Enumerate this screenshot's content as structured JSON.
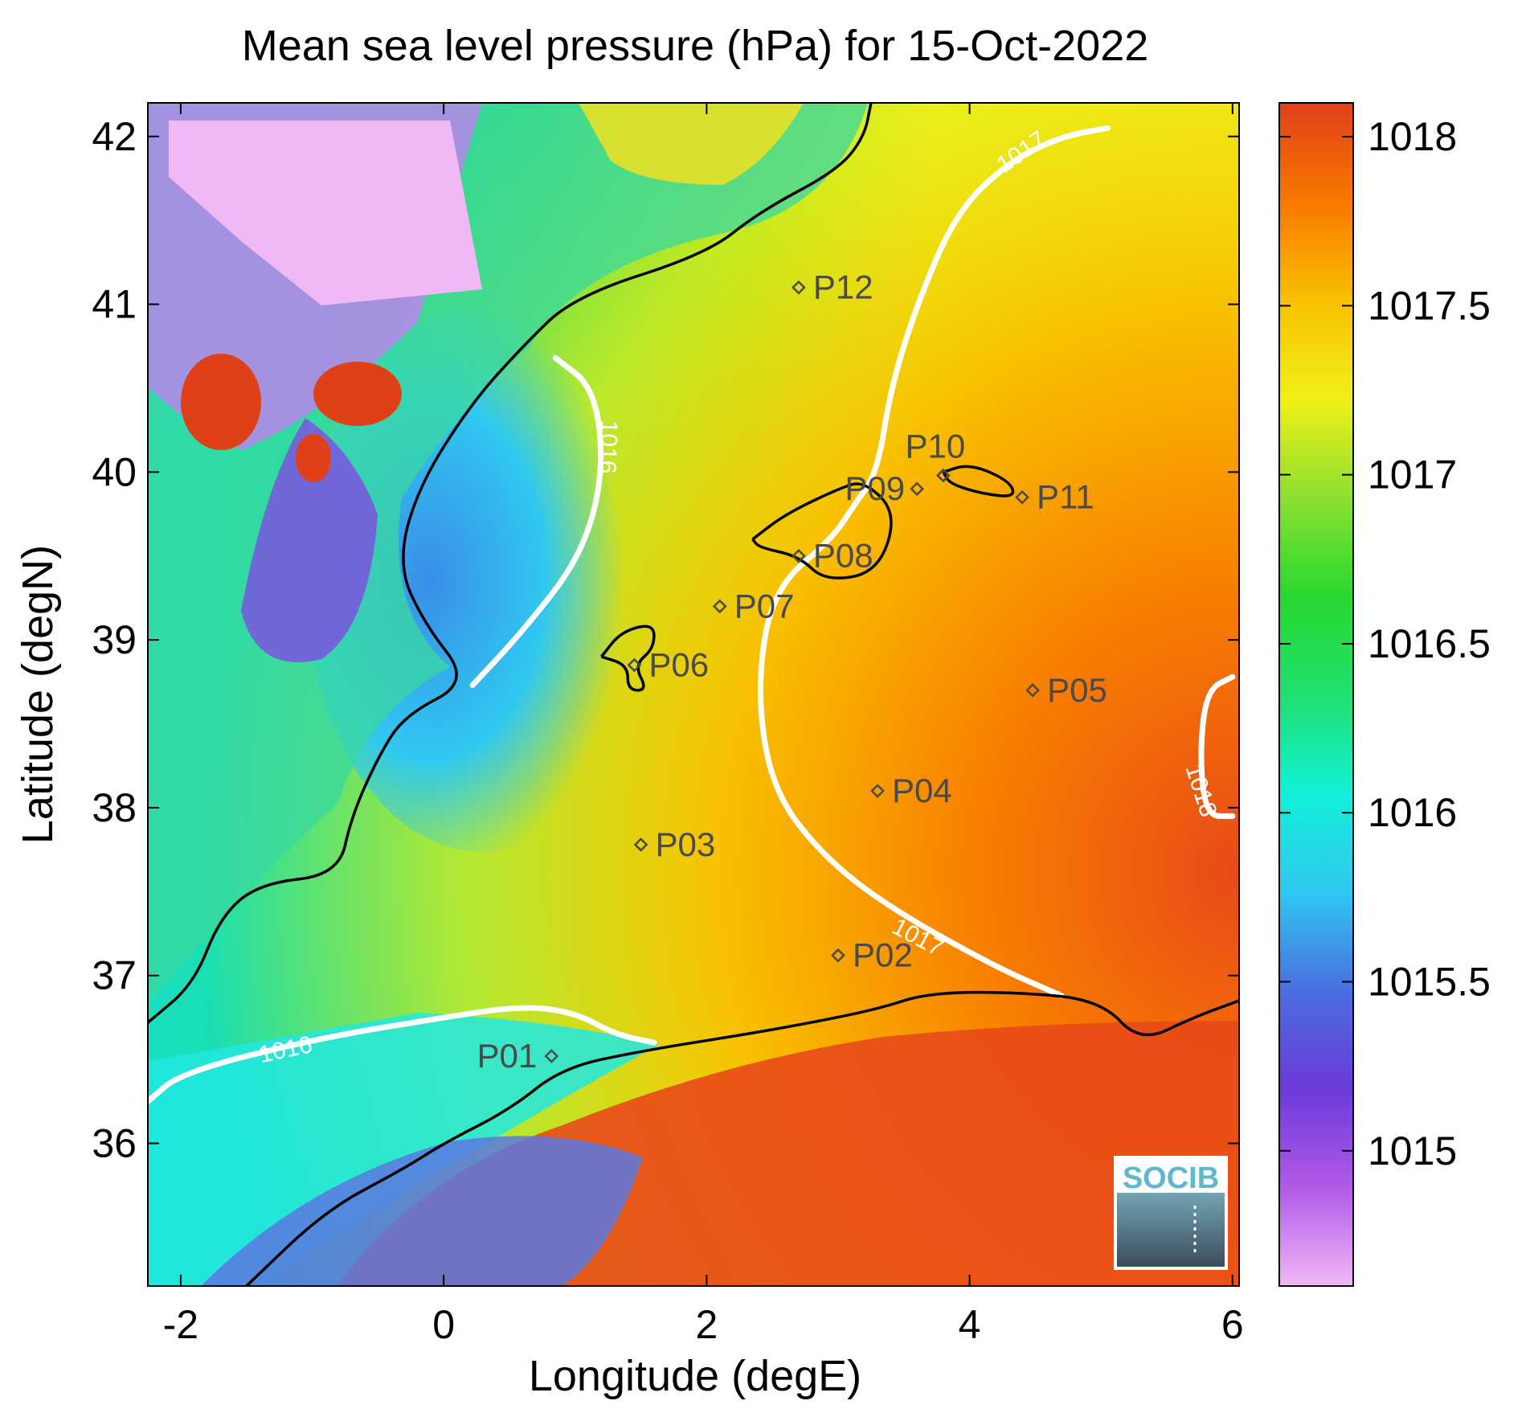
{
  "title": "Mean sea level pressure (hPa) for 15-Oct-2022",
  "xlabel": "Longitude (degE)",
  "ylabel": "Latitude (degN)",
  "xticks": [
    {
      "value": -2,
      "label": "-2"
    },
    {
      "value": 0,
      "label": "0"
    },
    {
      "value": 2,
      "label": "2"
    },
    {
      "value": 4,
      "label": "4"
    },
    {
      "value": 6,
      "label": "6"
    }
  ],
  "yticks": [
    {
      "value": 36,
      "label": "36"
    },
    {
      "value": 37,
      "label": "37"
    },
    {
      "value": 38,
      "label": "38"
    },
    {
      "value": 39,
      "label": "39"
    },
    {
      "value": 40,
      "label": "40"
    },
    {
      "value": 41,
      "label": "41"
    },
    {
      "value": 42,
      "label": "42"
    }
  ],
  "xlim": [
    -2.25,
    6.05
  ],
  "ylim": [
    35.15,
    42.2
  ],
  "colorbar": {
    "range": [
      1014.6,
      1018.1
    ],
    "ticks": [
      {
        "value": 1015,
        "label": "1015"
      },
      {
        "value": 1015.5,
        "label": "1015.5"
      },
      {
        "value": 1016,
        "label": "1016"
      },
      {
        "value": 1016.5,
        "label": "1016.5"
      },
      {
        "value": 1017,
        "label": "1017"
      },
      {
        "value": 1017.5,
        "label": "1017.5"
      },
      {
        "value": 1018,
        "label": "1018"
      }
    ],
    "colors": [
      "#f0b8f5",
      "#b05ae8",
      "#6b3ad8",
      "#4a6ee0",
      "#30c8f0",
      "#12f0d8",
      "#20e070",
      "#28d830",
      "#8ee030",
      "#f0f018",
      "#f8c000",
      "#f87800",
      "#e04018"
    ]
  },
  "stations": [
    {
      "id": "P01",
      "lon": 0.82,
      "lat": 36.52
    },
    {
      "id": "P02",
      "lon": 3.0,
      "lat": 37.12
    },
    {
      "id": "P03",
      "lon": 1.5,
      "lat": 37.78
    },
    {
      "id": "P04",
      "lon": 3.3,
      "lat": 38.1
    },
    {
      "id": "P05",
      "lon": 4.48,
      "lat": 38.7
    },
    {
      "id": "P06",
      "lon": 1.45,
      "lat": 38.85
    },
    {
      "id": "P07",
      "lon": 2.1,
      "lat": 39.2
    },
    {
      "id": "P08",
      "lon": 2.7,
      "lat": 39.5
    },
    {
      "id": "P09",
      "lon": 3.6,
      "lat": 39.9
    },
    {
      "id": "P10",
      "lon": 3.8,
      "lat": 39.98
    },
    {
      "id": "P11",
      "lon": 4.4,
      "lat": 39.85
    },
    {
      "id": "P12",
      "lon": 2.7,
      "lat": 41.1
    }
  ],
  "contour_labels": [
    {
      "text": "1016",
      "lon": 1.24,
      "lat": 40.15,
      "angle": 92
    },
    {
      "text": "1016",
      "lon": -1.2,
      "lat": 36.55,
      "angle": -12
    },
    {
      "text": "1017",
      "lon": 4.4,
      "lat": 41.9,
      "angle": -35
    },
    {
      "text": "1017",
      "lon": 3.6,
      "lat": 37.22,
      "angle": 28
    },
    {
      "text": "1018",
      "lon": 5.75,
      "lat": 38.1,
      "angle": 72
    }
  ],
  "contour_lines": [
    {
      "level": "1016",
      "points": [
        [
          0.85,
          40.68
        ],
        [
          1.15,
          40.5
        ],
        [
          1.22,
          40.0
        ],
        [
          1.05,
          39.5
        ],
        [
          0.6,
          39.05
        ],
        [
          0.22,
          38.73
        ]
      ]
    },
    {
      "level": "1016",
      "points": [
        [
          -2.25,
          36.25
        ],
        [
          -2.0,
          36.42
        ],
        [
          -1.0,
          36.62
        ],
        [
          0.0,
          36.75
        ],
        [
          0.6,
          36.82
        ],
        [
          1.0,
          36.78
        ],
        [
          1.3,
          36.65
        ],
        [
          1.6,
          36.6
        ]
      ]
    },
    {
      "level": "1017",
      "points": [
        [
          5.05,
          42.05
        ],
        [
          4.7,
          42.0
        ],
        [
          4.3,
          41.85
        ],
        [
          3.9,
          41.55
        ],
        [
          3.6,
          41.0
        ],
        [
          3.4,
          40.5
        ],
        [
          3.3,
          40.0
        ],
        [
          3.12,
          39.8
        ],
        [
          2.95,
          39.6
        ],
        [
          2.5,
          39.3
        ],
        [
          2.38,
          38.7
        ],
        [
          2.5,
          38.1
        ],
        [
          2.9,
          37.7
        ],
        [
          3.4,
          37.4
        ],
        [
          4.2,
          37.05
        ],
        [
          4.7,
          36.88
        ]
      ]
    },
    {
      "level": "1018",
      "points": [
        [
          6.0,
          38.78
        ],
        [
          5.8,
          38.7
        ],
        [
          5.75,
          38.3
        ],
        [
          5.8,
          37.95
        ],
        [
          6.0,
          37.95
        ]
      ]
    }
  ],
  "coastlines": [
    {
      "name": "iberia",
      "points": [
        [
          -2.25,
          36.72
        ],
        [
          -1.9,
          36.95
        ],
        [
          -1.7,
          37.35
        ],
        [
          -1.4,
          37.55
        ],
        [
          -0.8,
          37.6
        ],
        [
          -0.7,
          37.95
        ],
        [
          -0.5,
          38.3
        ],
        [
          -0.3,
          38.55
        ],
        [
          0.2,
          38.75
        ],
        [
          -0.15,
          39.1
        ],
        [
          -0.35,
          39.45
        ],
        [
          -0.2,
          39.9
        ],
        [
          0.2,
          40.4
        ],
        [
          0.6,
          40.75
        ],
        [
          1.0,
          41.05
        ],
        [
          2.0,
          41.3
        ],
        [
          2.4,
          41.55
        ],
        [
          3.0,
          41.8
        ],
        [
          3.2,
          42.0
        ],
        [
          3.25,
          42.2
        ]
      ]
    },
    {
      "name": "africa",
      "points": [
        [
          -1.5,
          35.15
        ],
        [
          -0.9,
          35.6
        ],
        [
          -0.3,
          35.85
        ],
        [
          0.0,
          36.0
        ],
        [
          0.5,
          36.2
        ],
        [
          0.9,
          36.45
        ],
        [
          1.5,
          36.55
        ],
        [
          2.3,
          36.65
        ],
        [
          2.8,
          36.72
        ],
        [
          3.3,
          36.8
        ],
        [
          3.7,
          36.9
        ],
        [
          4.4,
          36.9
        ],
        [
          5.0,
          36.85
        ],
        [
          5.3,
          36.6
        ],
        [
          5.7,
          36.75
        ],
        [
          6.05,
          36.85
        ]
      ]
    },
    {
      "name": "mallorca",
      "points": [
        [
          2.35,
          39.6
        ],
        [
          2.6,
          39.75
        ],
        [
          3.0,
          39.9
        ],
        [
          3.2,
          39.95
        ],
        [
          3.45,
          39.75
        ],
        [
          3.3,
          39.4
        ],
        [
          2.9,
          39.35
        ],
        [
          2.7,
          39.5
        ],
        [
          2.4,
          39.55
        ],
        [
          2.35,
          39.6
        ]
      ]
    },
    {
      "name": "menorca",
      "points": [
        [
          3.8,
          40.0
        ],
        [
          4.0,
          40.05
        ],
        [
          4.3,
          39.95
        ],
        [
          4.35,
          39.85
        ],
        [
          4.1,
          39.87
        ],
        [
          3.85,
          39.93
        ],
        [
          3.8,
          40.0
        ]
      ]
    },
    {
      "name": "ibiza",
      "points": [
        [
          1.2,
          38.9
        ],
        [
          1.35,
          39.05
        ],
        [
          1.6,
          39.1
        ],
        [
          1.6,
          38.95
        ],
        [
          1.45,
          38.85
        ],
        [
          1.55,
          38.7
        ],
        [
          1.4,
          38.7
        ],
        [
          1.4,
          38.85
        ],
        [
          1.2,
          38.9
        ]
      ]
    }
  ],
  "logo": {
    "text": "SOCIB"
  }
}
